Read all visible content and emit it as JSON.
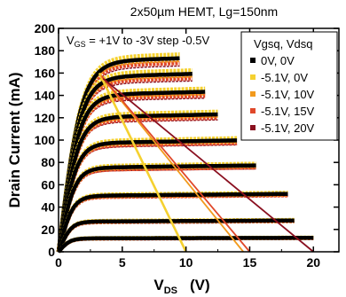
{
  "chart_data": {
    "type": "line",
    "title": "2x50µm HEMT, Lg=150nm",
    "annotation": {
      "prefix": "V",
      "sub": "GS",
      "text": " = +1V to -3V step -0.5V"
    },
    "xlabel": {
      "main": "V",
      "sub": "DS",
      "unit": "(V)"
    },
    "ylabel": "Drain Current (mA)",
    "xlim": [
      0,
      22
    ],
    "ylim": [
      0,
      200
    ],
    "x_ticks": [
      0,
      5,
      10,
      15,
      20
    ],
    "y_ticks": [
      0,
      20,
      40,
      60,
      80,
      100,
      120,
      140,
      160,
      180,
      200
    ],
    "grid": false,
    "legend_title": "Vgsq, Vdsq",
    "legend_position": "top-right",
    "series": [
      {
        "name": "0V, 0V",
        "color": "#000000"
      },
      {
        "name": "-5.1V, 0V",
        "color": "#f5d130"
      },
      {
        "name": "-5.1V, 10V",
        "color": "#f29a1d"
      },
      {
        "name": "-5.1V, 15V",
        "color": "#e0482a"
      },
      {
        "name": "-5.1V, 20V",
        "color": "#8a1020"
      }
    ],
    "curves": [
      {
        "vgs": 1.0,
        "isat": 170,
        "vmax": 9.5
      },
      {
        "vgs": 0.5,
        "isat": 156,
        "vmax": 10.5
      },
      {
        "vgs": 0.0,
        "isat": 140,
        "vmax": 11.5
      },
      {
        "vgs": -0.5,
        "isat": 120,
        "vmax": 12.5
      },
      {
        "vgs": -1.0,
        "isat": 97,
        "vmax": 14.0
      },
      {
        "vgs": -1.5,
        "isat": 75,
        "vmax": 15.5
      },
      {
        "vgs": -2.0,
        "isat": 50,
        "vmax": 18.0
      },
      {
        "vgs": -2.5,
        "isat": 27,
        "vmax": 18.5
      },
      {
        "vgs": -3.0,
        "isat": 12,
        "vmax": 20.0
      }
    ],
    "load_lines": [
      {
        "color": "#f5d130",
        "points": [
          [
            3.2,
            160
          ],
          [
            10,
            0
          ]
        ]
      },
      {
        "color": "#f29a1d",
        "points": [
          [
            3.3,
            158
          ],
          [
            14.5,
            0
          ]
        ]
      },
      {
        "color": "#e0482a",
        "points": [
          [
            3.4,
            157
          ],
          [
            15,
            0
          ]
        ]
      },
      {
        "color": "#8a1020",
        "points": [
          [
            3.5,
            155
          ],
          [
            20,
            0
          ]
        ]
      }
    ]
  }
}
